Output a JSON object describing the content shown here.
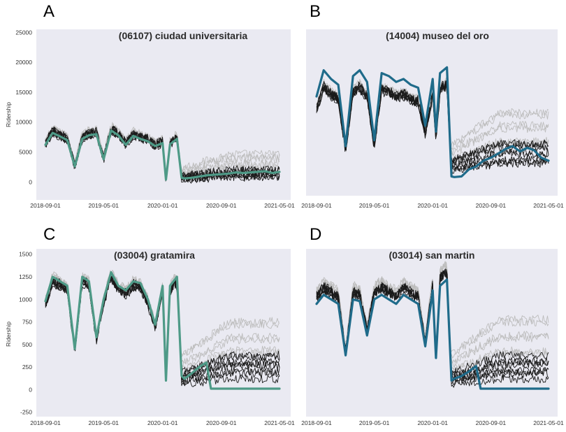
{
  "chart_data": [
    {
      "type": "line",
      "panel_label": "A",
      "title": "(06107) ciudad universitaria",
      "ylabel": "Ridership",
      "ylim": [
        -3000,
        25500
      ],
      "yticks": [
        "25000",
        "20000",
        "15000",
        "10000",
        "5000",
        "0"
      ],
      "ytick_values": [
        25000,
        20000,
        15000,
        10000,
        5000,
        0
      ],
      "xticks": [
        "2018-09-01",
        "2019-05-01",
        "2020-01-01",
        "2020-09-01",
        "2021-05-01"
      ],
      "x_range": [
        "2018-09-01",
        "2021-05-01"
      ],
      "grid": false,
      "highlight_color": "#4e9a87",
      "highlight": {
        "x": [
          "2018-09-01",
          "2018-10-01",
          "2018-11-01",
          "2018-12-01",
          "2019-01-01",
          "2019-02-01",
          "2019-03-01",
          "2019-04-01",
          "2019-05-01",
          "2019-06-01",
          "2019-07-01",
          "2019-08-01",
          "2019-09-01",
          "2019-10-01",
          "2019-11-01",
          "2019-12-01",
          "2020-01-01",
          "2020-01-15",
          "2020-02-01",
          "2020-03-01",
          "2020-03-20",
          "2020-04-01",
          "2020-05-01",
          "2020-06-01",
          "2020-07-01",
          "2020-08-01",
          "2020-09-01",
          "2020-10-01",
          "2020-11-01",
          "2020-12-01",
          "2021-01-01",
          "2021-02-01",
          "2021-03-01",
          "2021-04-01",
          "2021-05-01"
        ],
        "y": [
          6200,
          8200,
          7600,
          7000,
          2600,
          7200,
          7800,
          8000,
          3800,
          8600,
          7800,
          6200,
          7700,
          7200,
          6800,
          6000,
          6500,
          400,
          6300,
          7200,
          700,
          600,
          700,
          900,
          1100,
          1200,
          1300,
          1400,
          1600,
          1500,
          1600,
          1700,
          1800,
          1500,
          1700
        ]
      }
    },
    {
      "type": "line",
      "panel_label": "B",
      "title": "(14004) museo del oro",
      "ylabel": "",
      "ylim": [
        -3000,
        25500
      ],
      "yticks": [],
      "ytick_values": [],
      "xticks": [
        "2018-09-01",
        "2019-05-01",
        "2020-01-01",
        "2020-09-01",
        "2021-05-01"
      ],
      "x_range": [
        "2018-09-01",
        "2021-05-01"
      ],
      "grid": false,
      "highlight_color": "#1f6b8a",
      "highlight": {
        "x": [
          "2018-09-01",
          "2018-10-01",
          "2018-11-01",
          "2018-12-01",
          "2019-01-01",
          "2019-02-01",
          "2019-03-01",
          "2019-04-01",
          "2019-05-01",
          "2019-06-01",
          "2019-07-01",
          "2019-08-01",
          "2019-09-01",
          "2019-10-01",
          "2019-11-01",
          "2019-12-01",
          "2020-01-01",
          "2020-01-15",
          "2020-02-01",
          "2020-03-01",
          "2020-03-20",
          "2020-04-01",
          "2020-05-01",
          "2020-06-01",
          "2020-07-01",
          "2020-08-01",
          "2020-09-01",
          "2020-10-01",
          "2020-11-01",
          "2020-12-01",
          "2021-01-01",
          "2021-02-01",
          "2021-03-01",
          "2021-04-01",
          "2021-05-01"
        ],
        "y": [
          14000,
          18500,
          17000,
          16000,
          5500,
          17500,
          18500,
          16500,
          6500,
          18000,
          17500,
          16500,
          17000,
          16000,
          15500,
          9000,
          17000,
          8000,
          18000,
          19000,
          300,
          200,
          300,
          1500,
          2000,
          3000,
          3500,
          4200,
          5000,
          5500,
          4600,
          5200,
          4800,
          3500,
          3000
        ]
      }
    },
    {
      "type": "line",
      "panel_label": "C",
      "title": "(03004) gratamira",
      "ylabel": "Ridership",
      "ylim": [
        -300,
        1560
      ],
      "yticks": [
        "1500",
        "1250",
        "1000",
        "750",
        "500",
        "250",
        "0",
        "-250"
      ],
      "ytick_values": [
        1500,
        1250,
        1000,
        750,
        500,
        250,
        0,
        -250
      ],
      "xticks": [
        "2018-09-01",
        "2019-05-01",
        "2020-01-01",
        "2020-09-01",
        "2021-05-01"
      ],
      "x_range": [
        "2018-09-01",
        "2021-05-01"
      ],
      "grid": false,
      "highlight_color": "#4e9a87",
      "highlight": {
        "x": [
          "2018-09-01",
          "2018-10-01",
          "2018-11-01",
          "2018-12-01",
          "2019-01-01",
          "2019-02-01",
          "2019-03-01",
          "2019-04-01",
          "2019-05-01",
          "2019-06-01",
          "2019-07-01",
          "2019-08-01",
          "2019-09-01",
          "2019-10-01",
          "2019-11-01",
          "2019-12-01",
          "2020-01-01",
          "2020-01-15",
          "2020-02-01",
          "2020-03-01",
          "2020-03-20",
          "2020-04-01",
          "2020-05-01",
          "2020-06-01",
          "2020-07-01",
          "2020-07-20",
          "2020-08-01",
          "2020-09-01",
          "2020-10-01",
          "2020-11-01",
          "2020-12-01",
          "2021-01-01",
          "2021-02-01",
          "2021-03-01",
          "2021-04-01",
          "2021-05-01"
        ],
        "y": [
          980,
          1250,
          1200,
          1150,
          450,
          1250,
          1200,
          580,
          1000,
          1300,
          1150,
          1100,
          1200,
          1180,
          1000,
          720,
          1150,
          100,
          1150,
          1250,
          150,
          120,
          180,
          250,
          300,
          10,
          10,
          10,
          10,
          10,
          10,
          10,
          10,
          10,
          10,
          10
        ]
      }
    },
    {
      "type": "line",
      "panel_label": "D",
      "title": "(03014) san martin",
      "ylabel": "",
      "ylim": [
        -300,
        1560
      ],
      "yticks": [],
      "ytick_values": [],
      "xticks": [
        "2018-09-01",
        "2019-05-01",
        "2020-01-01",
        "2020-09-01",
        "2021-05-01"
      ],
      "x_range": [
        "2018-09-01",
        "2021-05-01"
      ],
      "grid": false,
      "highlight_color": "#1f6b8a",
      "highlight": {
        "x": [
          "2018-09-01",
          "2018-10-01",
          "2018-11-01",
          "2018-12-01",
          "2019-01-01",
          "2019-02-01",
          "2019-03-01",
          "2019-04-01",
          "2019-05-01",
          "2019-06-01",
          "2019-07-01",
          "2019-08-01",
          "2019-09-01",
          "2019-10-01",
          "2019-11-01",
          "2019-12-01",
          "2020-01-01",
          "2020-01-15",
          "2020-02-01",
          "2020-03-01",
          "2020-03-20",
          "2020-04-01",
          "2020-05-01",
          "2020-06-01",
          "2020-07-01",
          "2020-07-20",
          "2020-08-01",
          "2020-09-01",
          "2020-10-01",
          "2020-11-01",
          "2020-12-01",
          "2021-01-01",
          "2021-02-01",
          "2021-03-01",
          "2021-04-01",
          "2021-05-01"
        ],
        "y": [
          950,
          1050,
          1000,
          950,
          380,
          1000,
          980,
          600,
          1000,
          1050,
          1000,
          950,
          1050,
          1000,
          950,
          480,
          1100,
          350,
          1150,
          1220,
          100,
          120,
          150,
          200,
          260,
          10,
          10,
          10,
          10,
          10,
          10,
          10,
          10,
          10,
          10,
          10
        ]
      }
    }
  ]
}
